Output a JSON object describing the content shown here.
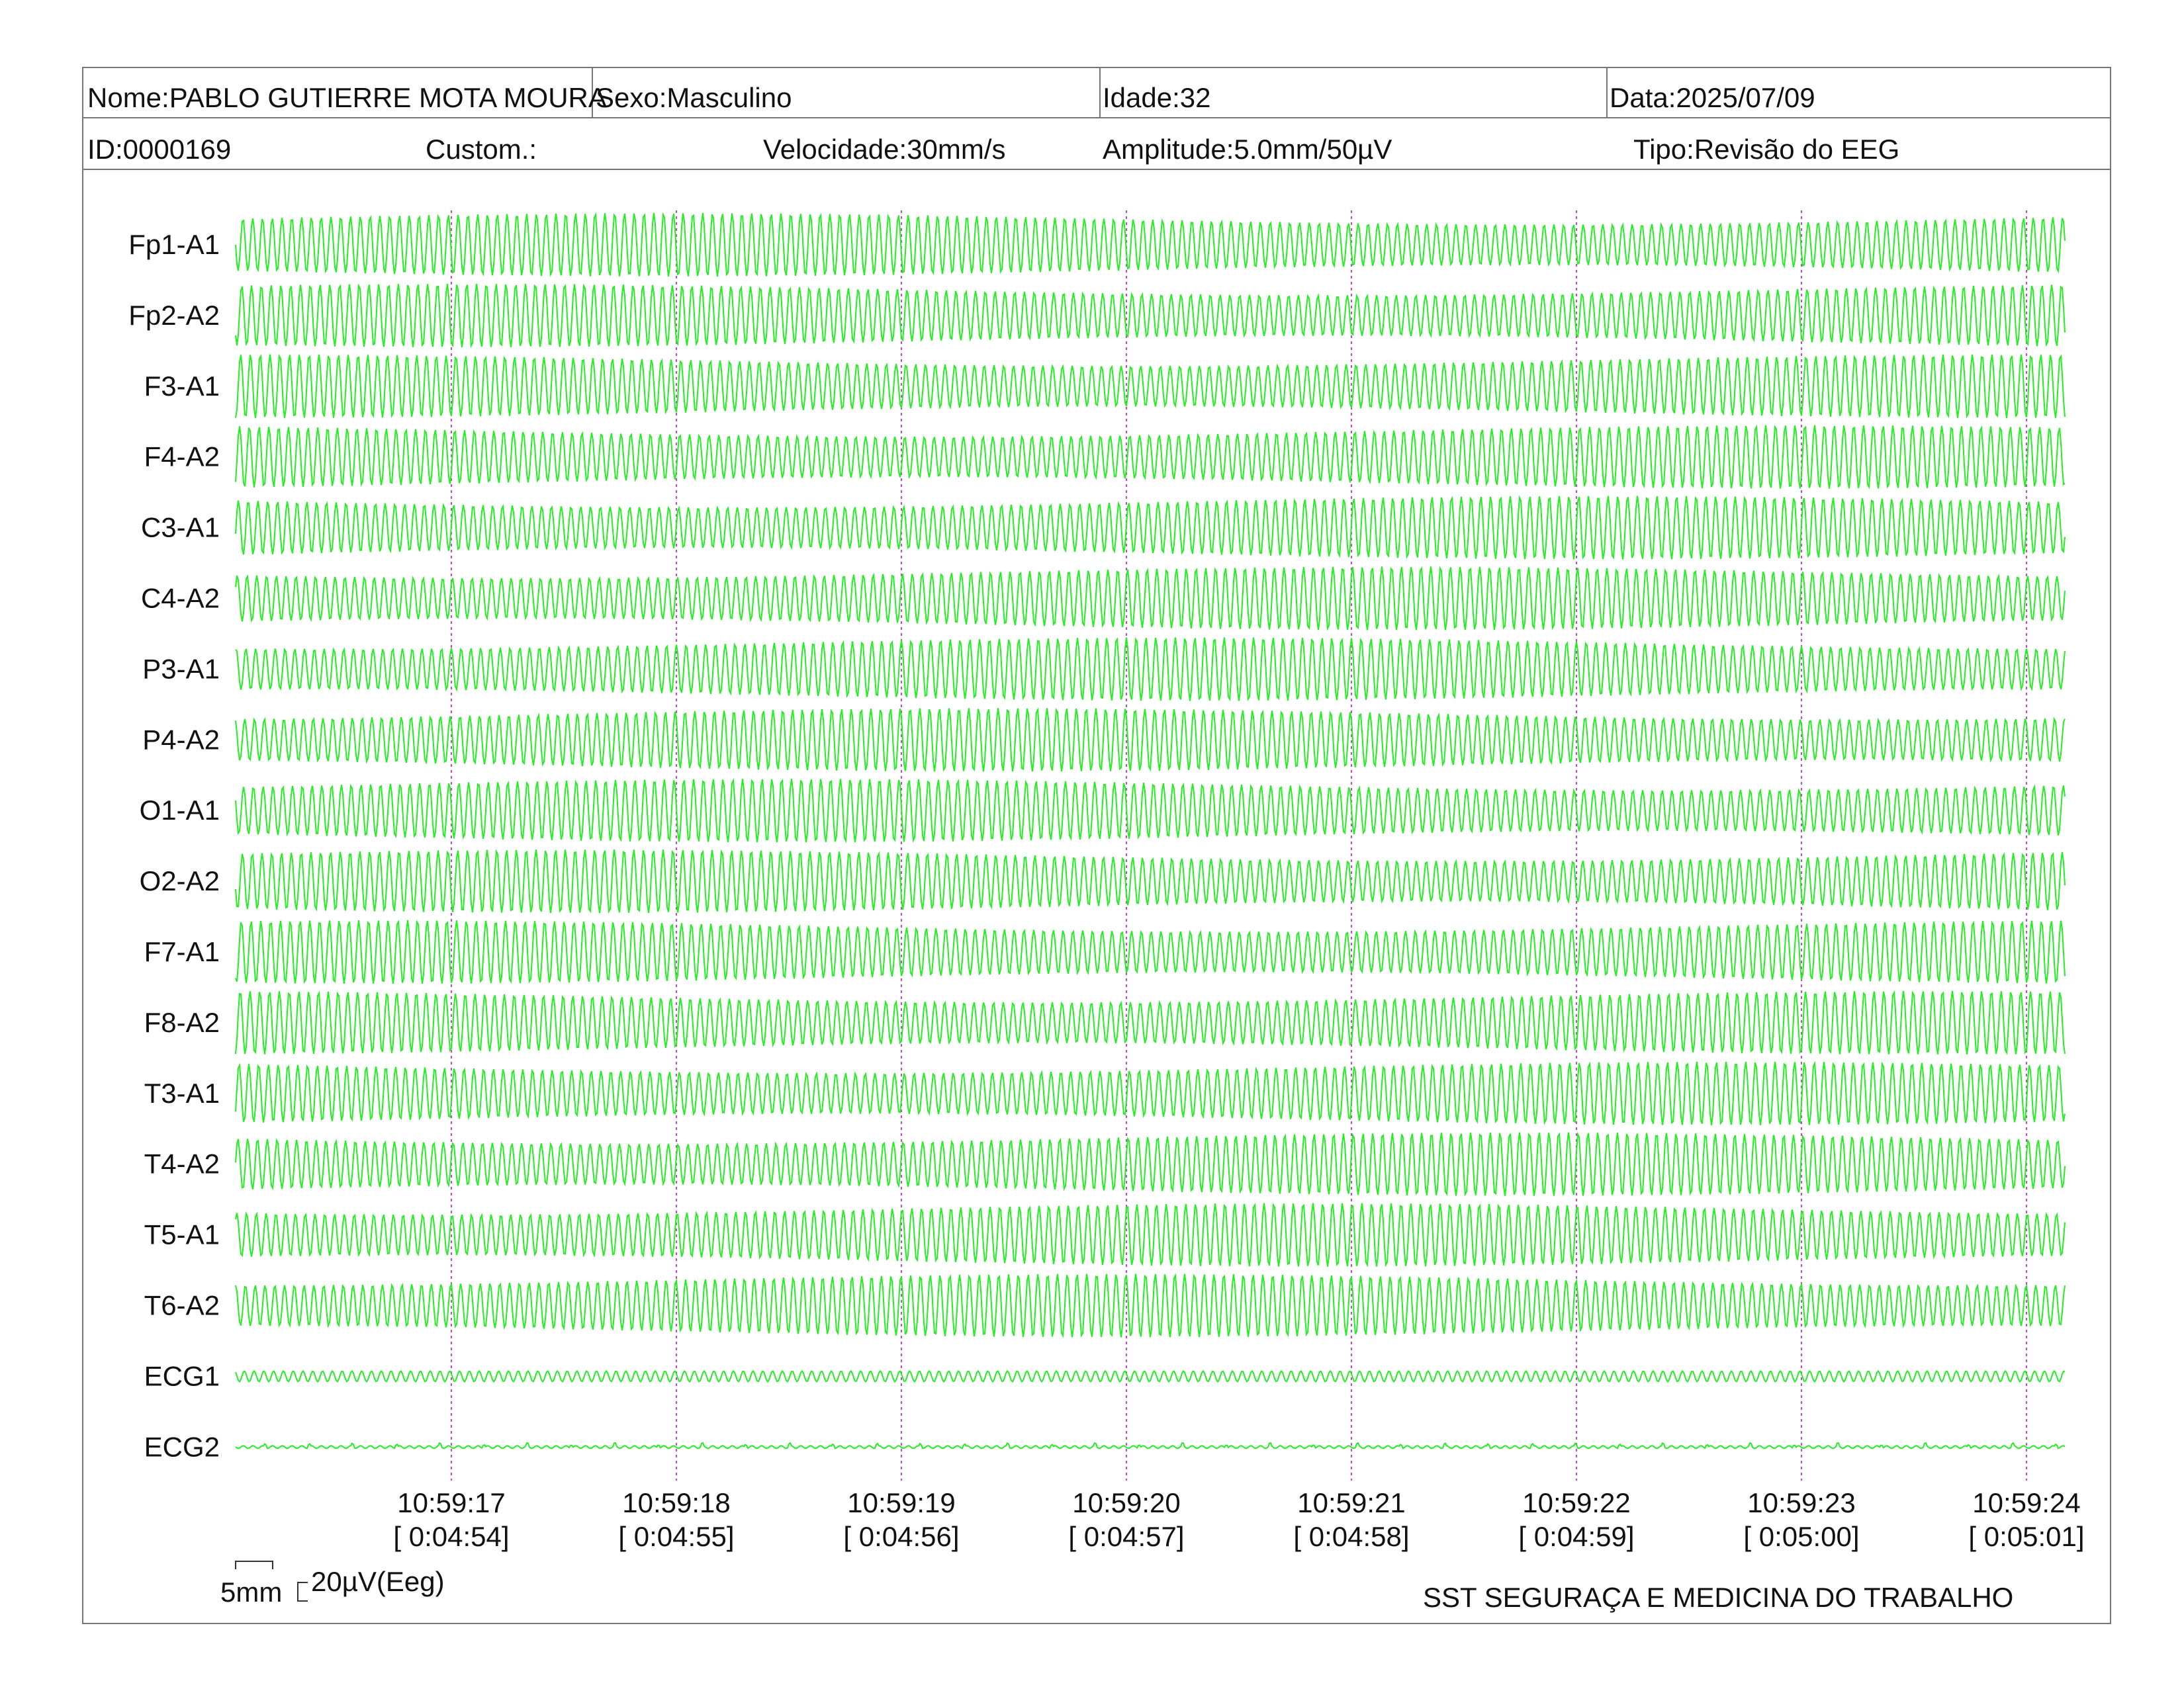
{
  "header": {
    "nome": "Nome:PABLO GUTIERRE MOTA MOURA",
    "sexo": "Sexo:Masculino",
    "idade": "Idade:32",
    "data": "Data:2025/07/09",
    "id": "ID:0000169",
    "custom": "Custom.:",
    "velocidade": "Velocidade:30mm/s",
    "amplitude": "Amplitude:5.0mm/50µV",
    "tipo": "Tipo:Revisão do EEG"
  },
  "footer": {
    "scale_time_label": "5mm",
    "scale_amp_label": "20µV(Eeg)",
    "company": "SST SEGURAÇA E MEDICINA DO TRABALHO"
  },
  "colors": {
    "trace": "#22ee22",
    "marker": "#cc44cc",
    "border": "#777777",
    "text": "#111111"
  },
  "chart_data": {
    "type": "line",
    "channels": [
      "Fp1-A1",
      "Fp2-A2",
      "F3-A1",
      "F4-A2",
      "C3-A1",
      "C4-A2",
      "P3-A1",
      "P4-A2",
      "O1-A1",
      "O2-A2",
      "F7-A1",
      "F8-A2",
      "T3-A1",
      "T4-A2",
      "T5-A1",
      "T6-A2",
      "ECG1",
      "ECG2"
    ],
    "time_markers": [
      {
        "clock": "10:59:17",
        "elapsed": "[ 0:04:54]"
      },
      {
        "clock": "10:59:18",
        "elapsed": "[ 0:04:55]"
      },
      {
        "clock": "10:59:19",
        "elapsed": "[ 0:04:56]"
      },
      {
        "clock": "10:59:20",
        "elapsed": "[ 0:04:57]"
      },
      {
        "clock": "10:59:21",
        "elapsed": "[ 0:04:58]"
      },
      {
        "clock": "10:59:22",
        "elapsed": "[ 0:04:59]"
      },
      {
        "clock": "10:59:23",
        "elapsed": "[ 0:05:00]"
      },
      {
        "clock": "10:59:24",
        "elapsed": "[ 0:05:01]"
      }
    ],
    "oscillation_cycles_per_second": 23,
    "seconds_before_first_marker": 0.96
  }
}
